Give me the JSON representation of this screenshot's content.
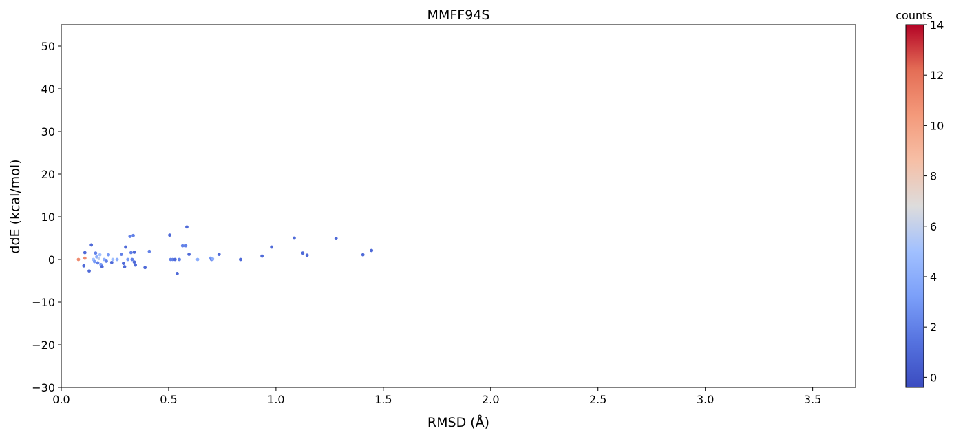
{
  "chart_data": {
    "type": "scatter",
    "title": "MMFF94S",
    "xlabel": "RMSD (Å)",
    "ylabel": "ddE (kcal/mol)",
    "xlim": [
      0.0,
      3.7
    ],
    "ylim": [
      -30,
      55
    ],
    "xticks": [
      0.0,
      0.5,
      1.0,
      1.5,
      2.0,
      2.5,
      3.0,
      3.5
    ],
    "xtick_labels": [
      "0.0",
      "0.5",
      "1.0",
      "1.5",
      "2.0",
      "2.5",
      "3.0",
      "3.5"
    ],
    "yticks": [
      -30,
      -20,
      -10,
      0,
      10,
      20,
      30,
      40,
      50
    ],
    "ytick_labels": [
      "−30",
      "−20",
      "−10",
      "0",
      "10",
      "20",
      "30",
      "40",
      "50"
    ],
    "grid": false,
    "colorbar": {
      "title": "counts",
      "range": [
        -0.4,
        14
      ],
      "ticks": [
        0,
        2,
        4,
        6,
        8,
        10,
        12,
        14
      ],
      "tick_labels": [
        "0",
        "2",
        "4",
        "6",
        "8",
        "10",
        "12",
        "14"
      ],
      "colormap": "coolwarm"
    },
    "points": [
      {
        "x": 0.08,
        "y": 0.0,
        "c": 11
      },
      {
        "x": 0.11,
        "y": 0.3,
        "c": 11
      },
      {
        "x": 0.11,
        "y": 1.6,
        "c": 1
      },
      {
        "x": 0.105,
        "y": -1.5,
        "c": 1
      },
      {
        "x": 0.13,
        "y": -2.7,
        "c": 1
      },
      {
        "x": 0.14,
        "y": 3.4,
        "c": 1
      },
      {
        "x": 0.15,
        "y": 0.0,
        "c": 5
      },
      {
        "x": 0.155,
        "y": -0.5,
        "c": 3
      },
      {
        "x": 0.16,
        "y": 1.5,
        "c": 2
      },
      {
        "x": 0.165,
        "y": 0.6,
        "c": 4
      },
      {
        "x": 0.17,
        "y": -0.8,
        "c": 2
      },
      {
        "x": 0.175,
        "y": 0.2,
        "c": 6
      },
      {
        "x": 0.18,
        "y": 1.1,
        "c": 5
      },
      {
        "x": 0.185,
        "y": -1.2,
        "c": 3
      },
      {
        "x": 0.19,
        "y": -1.7,
        "c": 1
      },
      {
        "x": 0.2,
        "y": 0.0,
        "c": 4
      },
      {
        "x": 0.21,
        "y": -0.4,
        "c": 2
      },
      {
        "x": 0.22,
        "y": 1.1,
        "c": 3
      },
      {
        "x": 0.235,
        "y": -0.7,
        "c": 1
      },
      {
        "x": 0.24,
        "y": 0.0,
        "c": 5
      },
      {
        "x": 0.26,
        "y": 0.0,
        "c": 4
      },
      {
        "x": 0.28,
        "y": 1.2,
        "c": 2
      },
      {
        "x": 0.29,
        "y": -0.9,
        "c": 1
      },
      {
        "x": 0.295,
        "y": -1.7,
        "c": 1
      },
      {
        "x": 0.3,
        "y": 2.9,
        "c": 1
      },
      {
        "x": 0.31,
        "y": 0.0,
        "c": 3
      },
      {
        "x": 0.32,
        "y": 5.4,
        "c": 2
      },
      {
        "x": 0.325,
        "y": 1.6,
        "c": 2
      },
      {
        "x": 0.33,
        "y": 0.0,
        "c": 2
      },
      {
        "x": 0.335,
        "y": 5.6,
        "c": 2
      },
      {
        "x": 0.34,
        "y": 1.7,
        "c": 1
      },
      {
        "x": 0.34,
        "y": -0.6,
        "c": 1
      },
      {
        "x": 0.345,
        "y": -1.3,
        "c": 1
      },
      {
        "x": 0.39,
        "y": -1.9,
        "c": 1
      },
      {
        "x": 0.41,
        "y": 1.9,
        "c": 2
      },
      {
        "x": 0.505,
        "y": 5.7,
        "c": 1
      },
      {
        "x": 0.51,
        "y": 0.0,
        "c": 2
      },
      {
        "x": 0.52,
        "y": 0.0,
        "c": 2
      },
      {
        "x": 0.53,
        "y": 0.0,
        "c": 1
      },
      {
        "x": 0.54,
        "y": -3.3,
        "c": 1
      },
      {
        "x": 0.55,
        "y": 0.0,
        "c": 2
      },
      {
        "x": 0.565,
        "y": 3.2,
        "c": 2
      },
      {
        "x": 0.58,
        "y": 3.2,
        "c": 2
      },
      {
        "x": 0.585,
        "y": 7.6,
        "c": 1
      },
      {
        "x": 0.595,
        "y": 1.2,
        "c": 1
      },
      {
        "x": 0.635,
        "y": 0.0,
        "c": 4
      },
      {
        "x": 0.695,
        "y": 0.3,
        "c": 3
      },
      {
        "x": 0.7,
        "y": 0.0,
        "c": 2
      },
      {
        "x": 0.705,
        "y": 0.1,
        "c": 4
      },
      {
        "x": 0.735,
        "y": 1.2,
        "c": 1
      },
      {
        "x": 0.835,
        "y": 0.0,
        "c": 1
      },
      {
        "x": 0.935,
        "y": 0.8,
        "c": 1
      },
      {
        "x": 0.98,
        "y": 2.9,
        "c": 1
      },
      {
        "x": 1.085,
        "y": 5.0,
        "c": 1
      },
      {
        "x": 1.125,
        "y": 1.5,
        "c": 1
      },
      {
        "x": 1.145,
        "y": 1.0,
        "c": 1
      },
      {
        "x": 1.28,
        "y": 4.9,
        "c": 1
      },
      {
        "x": 1.405,
        "y": 1.1,
        "c": 1
      },
      {
        "x": 1.445,
        "y": 2.1,
        "c": 1
      }
    ]
  }
}
